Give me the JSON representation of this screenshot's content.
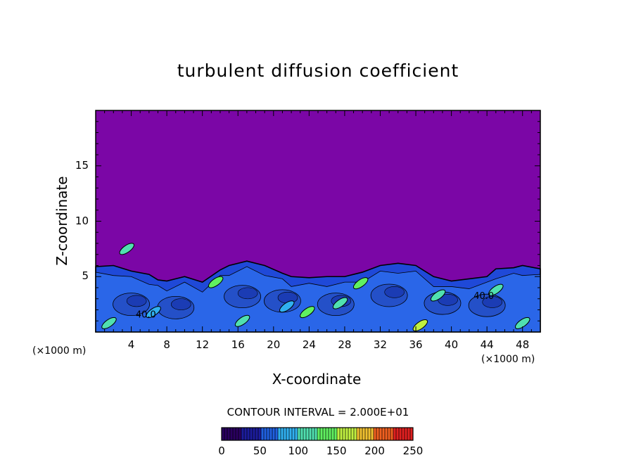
{
  "chart_data": {
    "type": "heatmap",
    "title": "turbulent diffusion coefficient",
    "xlabel": "X-coordinate",
    "ylabel": "Z-coordinate",
    "x_unit": "(×1000 m)",
    "y_unit": "(×1000 m)",
    "x_ticks": [
      4,
      8,
      12,
      16,
      20,
      24,
      28,
      32,
      36,
      40,
      44,
      48
    ],
    "y_ticks": [
      5,
      10,
      15
    ],
    "xlim": [
      0,
      50
    ],
    "ylim": [
      0,
      20
    ],
    "contour_interval_text": "CONTOUR INTERVAL = 2.000E+01",
    "contour_labels": [
      "40.0",
      "40.0"
    ],
    "colorbar": {
      "range": [
        0,
        250
      ],
      "ticks": [
        0,
        50,
        100,
        150,
        200,
        250
      ],
      "colors": [
        "#2a0060",
        "#1c1c9c",
        "#2060e0",
        "#30b0f0",
        "#50e0b0",
        "#60f060",
        "#c0f040",
        "#f0c030",
        "#f06020",
        "#e02020"
      ]
    },
    "background_color": "#7b06a6",
    "layer_top_profile": [
      [
        0,
        5.9
      ],
      [
        2,
        6.0
      ],
      [
        4,
        5.5
      ],
      [
        6,
        5.2
      ],
      [
        7,
        4.7
      ],
      [
        8,
        4.6
      ],
      [
        10,
        5.0
      ],
      [
        12,
        4.5
      ],
      [
        14,
        5.6
      ],
      [
        15,
        6.0
      ],
      [
        17,
        6.4
      ],
      [
        19,
        6.0
      ],
      [
        21,
        5.3
      ],
      [
        22,
        5.0
      ],
      [
        24,
        4.9
      ],
      [
        26,
        5.0
      ],
      [
        28,
        5.0
      ],
      [
        30,
        5.4
      ],
      [
        32,
        6.0
      ],
      [
        34,
        6.2
      ],
      [
        36,
        6.0
      ],
      [
        38,
        5.0
      ],
      [
        40,
        4.6
      ],
      [
        42,
        4.8
      ],
      [
        44,
        5.0
      ],
      [
        45,
        5.7
      ],
      [
        47,
        5.8
      ],
      [
        48,
        6.0
      ],
      [
        50,
        5.7
      ]
    ],
    "high_value_patches": [
      {
        "x": 1.5,
        "z": 0.8,
        "value": 120
      },
      {
        "x": 6.5,
        "z": 1.8,
        "value": 80
      },
      {
        "x": 13.5,
        "z": 4.5,
        "value": 140
      },
      {
        "x": 16.5,
        "z": 1.0,
        "value": 110
      },
      {
        "x": 21.5,
        "z": 2.3,
        "value": 90
      },
      {
        "x": 23.8,
        "z": 1.8,
        "value": 130
      },
      {
        "x": 27.5,
        "z": 2.6,
        "value": 120
      },
      {
        "x": 29.8,
        "z": 4.4,
        "value": 140
      },
      {
        "x": 36.5,
        "z": 0.6,
        "value": 150
      },
      {
        "x": 38.5,
        "z": 3.3,
        "value": 110
      },
      {
        "x": 45.0,
        "z": 3.8,
        "value": 120
      },
      {
        "x": 48.0,
        "z": 0.8,
        "value": 100
      },
      {
        "x": 3.5,
        "z": 7.5,
        "value": 100
      }
    ]
  }
}
